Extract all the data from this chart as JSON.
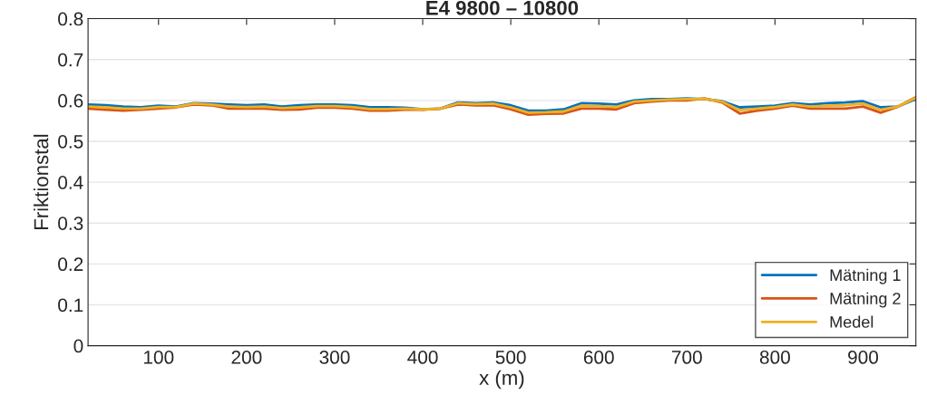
{
  "chart_data": {
    "type": "line",
    "title": "E4 9800 – 10800",
    "xlabel": "x (m)",
    "ylabel": "Friktionstal",
    "x": [
      20,
      40,
      60,
      80,
      100,
      120,
      140,
      160,
      180,
      200,
      220,
      240,
      260,
      280,
      300,
      320,
      340,
      360,
      380,
      400,
      420,
      440,
      460,
      480,
      500,
      520,
      540,
      560,
      580,
      600,
      620,
      640,
      660,
      680,
      700,
      720,
      740,
      760,
      780,
      800,
      820,
      840,
      860,
      880,
      900,
      920,
      940,
      960
    ],
    "series": [
      {
        "name": "Mätning 1",
        "color": "#0072bd",
        "values": [
          0.59,
          0.588,
          0.585,
          0.583,
          0.587,
          0.585,
          0.593,
          0.592,
          0.59,
          0.588,
          0.59,
          0.585,
          0.588,
          0.59,
          0.59,
          0.588,
          0.583,
          0.583,
          0.582,
          0.578,
          0.58,
          0.595,
          0.593,
          0.595,
          0.588,
          0.575,
          0.575,
          0.578,
          0.593,
          0.592,
          0.59,
          0.6,
          0.603,
          0.603,
          0.605,
          0.603,
          0.598,
          0.583,
          0.585,
          0.587,
          0.593,
          0.59,
          0.593,
          0.595,
          0.598,
          0.583,
          0.585,
          0.603
        ]
      },
      {
        "name": "Mätning 2",
        "color": "#d95319",
        "values": [
          0.58,
          0.577,
          0.575,
          0.577,
          0.58,
          0.583,
          0.59,
          0.588,
          0.58,
          0.58,
          0.58,
          0.577,
          0.578,
          0.582,
          0.582,
          0.58,
          0.575,
          0.575,
          0.577,
          0.577,
          0.58,
          0.59,
          0.588,
          0.588,
          0.578,
          0.565,
          0.567,
          0.568,
          0.58,
          0.58,
          0.578,
          0.593,
          0.597,
          0.6,
          0.6,
          0.605,
          0.595,
          0.568,
          0.575,
          0.58,
          0.587,
          0.58,
          0.58,
          0.58,
          0.585,
          0.57,
          0.585,
          0.608
        ]
      },
      {
        "name": "Medel",
        "color": "#edb120",
        "values": [
          0.585,
          0.583,
          0.58,
          0.58,
          0.584,
          0.584,
          0.592,
          0.59,
          0.585,
          0.584,
          0.585,
          0.581,
          0.583,
          0.586,
          0.586,
          0.584,
          0.579,
          0.579,
          0.58,
          0.578,
          0.58,
          0.593,
          0.591,
          0.592,
          0.583,
          0.57,
          0.571,
          0.573,
          0.587,
          0.586,
          0.584,
          0.597,
          0.6,
          0.602,
          0.603,
          0.604,
          0.597,
          0.576,
          0.58,
          0.584,
          0.59,
          0.585,
          0.587,
          0.588,
          0.592,
          0.577,
          0.585,
          0.606
        ]
      }
    ],
    "xlim": [
      20,
      960
    ],
    "xticks": [
      100,
      200,
      300,
      400,
      500,
      600,
      700,
      800,
      900
    ],
    "ylim": [
      0,
      0.8
    ],
    "yticks": [
      0,
      0.1,
      0.2,
      0.3,
      0.4,
      0.5,
      0.6,
      0.7,
      0.8
    ],
    "grid": "y",
    "legend": "lower right",
    "line_style": "solid",
    "marker": "none"
  }
}
